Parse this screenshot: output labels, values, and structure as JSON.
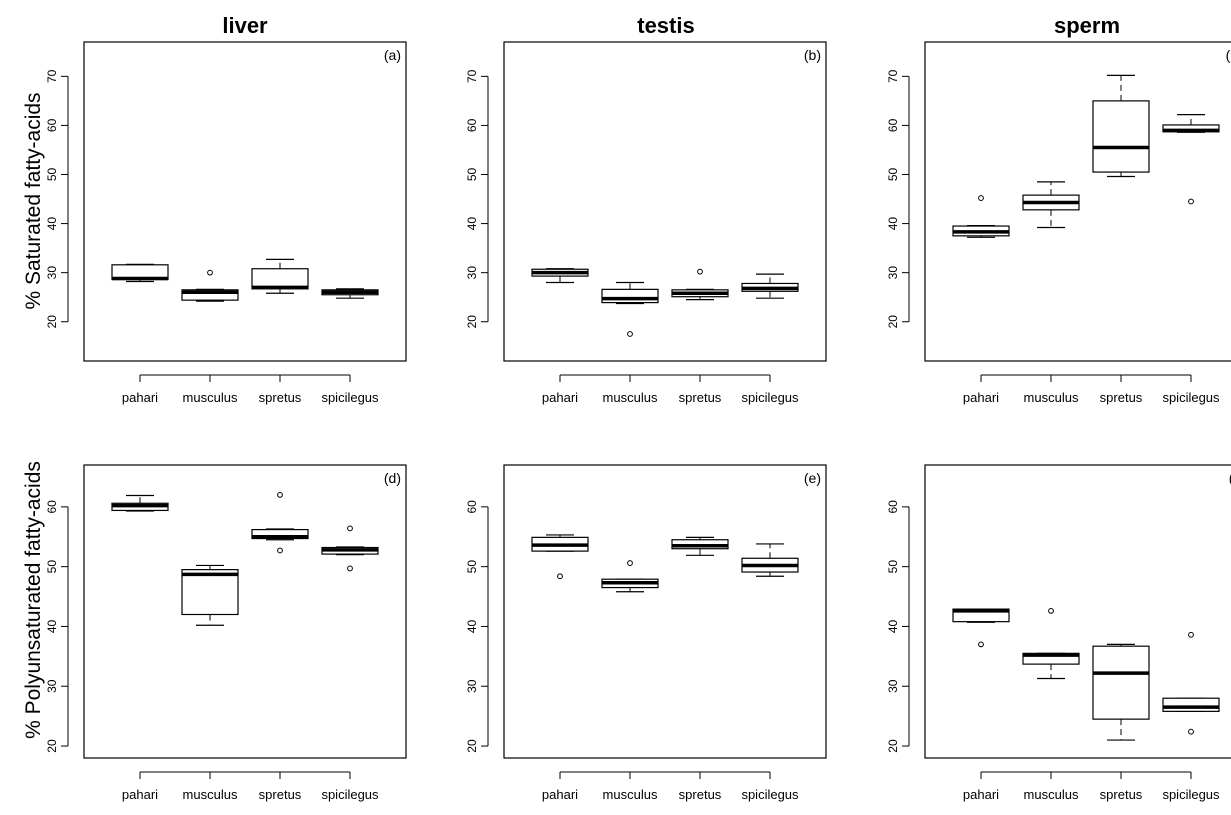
{
  "figure": {
    "column_titles": [
      "liver",
      "testis",
      "sperm"
    ],
    "row_labels": [
      "% Saturated fatty-acids",
      "% Polyunsaturated fatty-acids"
    ]
  },
  "chart_data": [
    {
      "type": "box",
      "panel": "(a)",
      "title": "liver",
      "row": 0,
      "col": 0,
      "ylabel": "% Saturated fatty-acids",
      "ylim": [
        12,
        77
      ],
      "yticks": [
        20,
        30,
        40,
        50,
        60,
        70
      ],
      "categories": [
        "pahari",
        "musculus",
        "spretus",
        "spicilegus"
      ],
      "boxes": [
        {
          "min": 28.2,
          "q1": 28.6,
          "median": 28.8,
          "q3": 31.6,
          "max": 31.7,
          "outliers": []
        },
        {
          "min": 24.2,
          "q1": 24.4,
          "median": 26.0,
          "q3": 26.5,
          "max": 26.6,
          "outliers": [
            30.0
          ]
        },
        {
          "min": 25.8,
          "q1": 26.7,
          "median": 27.0,
          "q3": 30.8,
          "max": 32.7,
          "outliers": []
        },
        {
          "min": 24.8,
          "q1": 25.5,
          "median": 26.0,
          "q3": 26.5,
          "max": 26.7,
          "outliers": []
        }
      ]
    },
    {
      "type": "box",
      "panel": "(b)",
      "title": "testis",
      "row": 0,
      "col": 1,
      "ylabel": "",
      "ylim": [
        12,
        77
      ],
      "yticks": [
        20,
        30,
        40,
        50,
        60,
        70
      ],
      "categories": [
        "pahari",
        "musculus",
        "spretus",
        "spicilegus"
      ],
      "boxes": [
        {
          "min": 28.0,
          "q1": 29.3,
          "median": 30.0,
          "q3": 30.7,
          "max": 30.8,
          "outliers": []
        },
        {
          "min": 23.7,
          "q1": 23.9,
          "median": 24.7,
          "q3": 26.6,
          "max": 28.0,
          "outliers": [
            17.5
          ]
        },
        {
          "min": 24.5,
          "q1": 25.1,
          "median": 25.8,
          "q3": 26.5,
          "max": 26.6,
          "outliers": [
            30.2
          ]
        },
        {
          "min": 24.8,
          "q1": 26.2,
          "median": 26.8,
          "q3": 27.8,
          "max": 29.7,
          "outliers": []
        }
      ]
    },
    {
      "type": "box",
      "panel": "(c)",
      "title": "sperm",
      "row": 0,
      "col": 2,
      "ylabel": "",
      "ylim": [
        12,
        77
      ],
      "yticks": [
        20,
        30,
        40,
        50,
        60,
        70
      ],
      "categories": [
        "pahari",
        "musculus",
        "spretus",
        "spicilegus"
      ],
      "boxes": [
        {
          "min": 37.2,
          "q1": 37.5,
          "median": 38.3,
          "q3": 39.5,
          "max": 39.6,
          "outliers": [
            45.2
          ]
        },
        {
          "min": 39.2,
          "q1": 42.8,
          "median": 44.3,
          "q3": 45.8,
          "max": 48.5,
          "outliers": []
        },
        {
          "min": 49.6,
          "q1": 50.5,
          "median": 55.5,
          "q3": 65.0,
          "max": 70.2,
          "outliers": []
        },
        {
          "min": 58.6,
          "q1": 58.7,
          "median": 59.0,
          "q3": 60.1,
          "max": 62.2,
          "outliers": [
            44.5
          ]
        }
      ]
    },
    {
      "type": "box",
      "panel": "(d)",
      "title": "",
      "row": 1,
      "col": 0,
      "ylabel": "% Polyunsaturated fatty-acids",
      "ylim": [
        18,
        67
      ],
      "yticks": [
        20,
        30,
        40,
        50,
        60
      ],
      "categories": [
        "pahari",
        "musculus",
        "spretus",
        "spicilegus"
      ],
      "boxes": [
        {
          "min": 59.3,
          "q1": 59.4,
          "median": 60.2,
          "q3": 60.6,
          "max": 61.9,
          "outliers": []
        },
        {
          "min": 40.2,
          "q1": 42.0,
          "median": 48.7,
          "q3": 49.5,
          "max": 50.2,
          "outliers": []
        },
        {
          "min": 54.5,
          "q1": 54.7,
          "median": 55.0,
          "q3": 56.2,
          "max": 56.3,
          "outliers": [
            62.0,
            52.7
          ]
        },
        {
          "min": 52.0,
          "q1": 52.1,
          "median": 52.8,
          "q3": 53.2,
          "max": 53.3,
          "outliers": [
            56.4,
            49.7
          ]
        }
      ]
    },
    {
      "type": "box",
      "panel": "(e)",
      "title": "",
      "row": 1,
      "col": 1,
      "ylabel": "",
      "ylim": [
        18,
        67
      ],
      "yticks": [
        20,
        30,
        40,
        50,
        60
      ],
      "categories": [
        "pahari",
        "musculus",
        "spretus",
        "spicilegus"
      ],
      "boxes": [
        {
          "min": 52.6,
          "q1": 52.6,
          "median": 53.6,
          "q3": 54.9,
          "max": 55.3,
          "outliers": [
            48.4
          ]
        },
        {
          "min": 45.8,
          "q1": 46.5,
          "median": 47.3,
          "q3": 47.9,
          "max": 47.9,
          "outliers": [
            50.6
          ]
        },
        {
          "min": 51.9,
          "q1": 53.0,
          "median": 53.5,
          "q3": 54.5,
          "max": 54.9,
          "outliers": []
        },
        {
          "min": 48.4,
          "q1": 49.1,
          "median": 50.2,
          "q3": 51.4,
          "max": 53.8,
          "outliers": []
        }
      ]
    },
    {
      "type": "box",
      "panel": "(f)",
      "title": "",
      "row": 1,
      "col": 2,
      "ylabel": "",
      "ylim": [
        18,
        67
      ],
      "yticks": [
        20,
        30,
        40,
        50,
        60
      ],
      "categories": [
        "pahari",
        "musculus",
        "spretus",
        "spicilegus"
      ],
      "boxes": [
        {
          "min": 40.7,
          "q1": 40.8,
          "median": 42.6,
          "q3": 42.9,
          "max": 42.9,
          "outliers": [
            37.0
          ]
        },
        {
          "min": 31.3,
          "q1": 33.7,
          "median": 35.2,
          "q3": 35.5,
          "max": 35.5,
          "outliers": [
            42.6
          ]
        },
        {
          "min": 21.0,
          "q1": 24.5,
          "median": 32.2,
          "q3": 36.7,
          "max": 37.0,
          "outliers": []
        },
        {
          "min": 25.8,
          "q1": 25.8,
          "median": 26.5,
          "q3": 28.0,
          "max": 28.0,
          "outliers": [
            38.6,
            22.4
          ]
        }
      ]
    }
  ]
}
